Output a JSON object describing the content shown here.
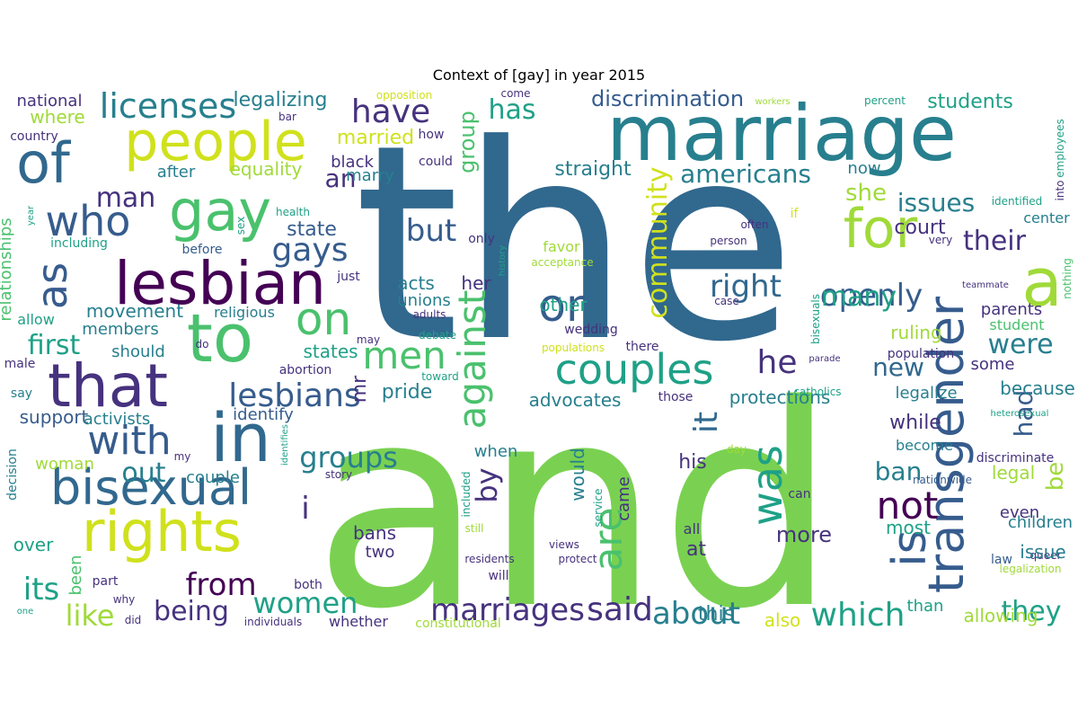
{
  "title": "Context of [gay] in year 2015",
  "palette": {
    "dark_purple": "#440154",
    "indigo": "#46327e",
    "blue": "#365c8d",
    "steel": "#31688e",
    "teal": "#277f8e",
    "green_teal": "#1fa187",
    "green": "#4ac16d",
    "lime": "#7ad151",
    "yellow_green": "#a0da39",
    "yellow": "#d0e11c"
  },
  "words": [
    {
      "text": "the",
      "color": "#31688e"
    },
    {
      "text": "and",
      "color": "#7ad151"
    },
    {
      "text": "marriage",
      "color": "#277f8e"
    },
    {
      "text": "of",
      "color": "#31688e"
    },
    {
      "text": "people",
      "color": "#d0e11c"
    },
    {
      "text": "gay",
      "color": "#4ac16d"
    },
    {
      "text": "lesbian",
      "color": "#440154"
    },
    {
      "text": "to",
      "color": "#4ac16d"
    },
    {
      "text": "in",
      "color": "#31688e"
    },
    {
      "text": "that",
      "color": "#46327e"
    },
    {
      "text": "rights",
      "color": "#d0e11c"
    },
    {
      "text": "bisexual",
      "color": "#31688e"
    },
    {
      "text": "transgender",
      "color": "#365c8d"
    },
    {
      "text": "a",
      "color": "#a0da39"
    },
    {
      "text": "for",
      "color": "#a0da39"
    },
    {
      "text": "couples",
      "color": "#1fa187"
    },
    {
      "text": "who",
      "color": "#365c8d"
    },
    {
      "text": "as",
      "color": "#365c8d"
    },
    {
      "text": "on",
      "color": "#4ac16d"
    },
    {
      "text": "or",
      "color": "#365c8d"
    },
    {
      "text": "is",
      "color": "#365c8d"
    },
    {
      "text": "openly",
      "color": "#365c8d"
    },
    {
      "text": "with",
      "color": "#365c8d"
    },
    {
      "text": "was",
      "color": "#1fa187"
    },
    {
      "text": "are",
      "color": "#4ac16d"
    },
    {
      "text": "against",
      "color": "#4ac16d"
    },
    {
      "text": "lesbians",
      "color": "#365c8d"
    },
    {
      "text": "men",
      "color": "#4ac16d"
    },
    {
      "text": "have",
      "color": "#46327e"
    },
    {
      "text": "licenses",
      "color": "#277f8e"
    },
    {
      "text": "gays",
      "color": "#365c8d"
    },
    {
      "text": "but",
      "color": "#365c8d"
    },
    {
      "text": "he",
      "color": "#46327e"
    },
    {
      "text": "not",
      "color": "#440154"
    },
    {
      "text": "their",
      "color": "#46327e"
    },
    {
      "text": "marriages",
      "color": "#46327e"
    },
    {
      "text": "said",
      "color": "#46327e"
    },
    {
      "text": "about",
      "color": "#277f8e"
    },
    {
      "text": "which",
      "color": "#1fa187"
    },
    {
      "text": "women",
      "color": "#1fa187"
    },
    {
      "text": "from",
      "color": "#440154"
    },
    {
      "text": "being",
      "color": "#46327e"
    },
    {
      "text": "like",
      "color": "#a0da39"
    },
    {
      "text": "its",
      "color": "#1fa187"
    },
    {
      "text": "groups",
      "color": "#277f8e"
    },
    {
      "text": "out",
      "color": "#277f8e"
    },
    {
      "text": "by",
      "color": "#46327e"
    },
    {
      "text": "community",
      "color": "#d0e11c"
    },
    {
      "text": "group",
      "color": "#4ac16d"
    },
    {
      "text": "has",
      "color": "#1fa187"
    },
    {
      "text": "discrimination",
      "color": "#365c8d"
    },
    {
      "text": "americans",
      "color": "#277f8e"
    },
    {
      "text": "she",
      "color": "#a0da39"
    },
    {
      "text": "issues",
      "color": "#277f8e"
    },
    {
      "text": "many",
      "color": "#1fa187"
    },
    {
      "text": "right",
      "color": "#31688e"
    },
    {
      "text": "were",
      "color": "#277f8e"
    },
    {
      "text": "new",
      "color": "#31688e"
    },
    {
      "text": "had",
      "color": "#365c8d"
    },
    {
      "text": "be",
      "color": "#a0da39"
    },
    {
      "text": "ban",
      "color": "#277f8e"
    },
    {
      "text": "they",
      "color": "#1fa187"
    },
    {
      "text": "first",
      "color": "#1fa187"
    },
    {
      "text": "man",
      "color": "#46327e"
    },
    {
      "text": "an",
      "color": "#46327e"
    },
    {
      "text": "students",
      "color": "#1fa187"
    },
    {
      "text": "court",
      "color": "#46327e"
    },
    {
      "text": "legalizing",
      "color": "#277f8e"
    },
    {
      "text": "national",
      "color": "#46327e"
    },
    {
      "text": "married",
      "color": "#d0e11c"
    },
    {
      "text": "where",
      "color": "#a0da39"
    },
    {
      "text": "country",
      "color": "#46327e"
    },
    {
      "text": "equality",
      "color": "#a0da39"
    },
    {
      "text": "after",
      "color": "#277f8e"
    },
    {
      "text": "black",
      "color": "#46327e"
    },
    {
      "text": "marry",
      "color": "#277f8e"
    },
    {
      "text": "state",
      "color": "#365c8d"
    },
    {
      "text": "movement",
      "color": "#277f8e"
    },
    {
      "text": "members",
      "color": "#277f8e"
    },
    {
      "text": "religious",
      "color": "#277f8e"
    },
    {
      "text": "should",
      "color": "#277f8e"
    },
    {
      "text": "states",
      "color": "#1fa187"
    },
    {
      "text": "pride",
      "color": "#277f8e"
    },
    {
      "text": "mr",
      "color": "#46327e"
    },
    {
      "text": "support",
      "color": "#365c8d"
    },
    {
      "text": "activists",
      "color": "#277f8e"
    },
    {
      "text": "identify",
      "color": "#365c8d"
    },
    {
      "text": "advocates",
      "color": "#277f8e"
    },
    {
      "text": "protections",
      "color": "#277f8e"
    },
    {
      "text": "straight",
      "color": "#277f8e"
    },
    {
      "text": "it",
      "color": "#31688e"
    },
    {
      "text": "her",
      "color": "#46327e"
    },
    {
      "text": "acts",
      "color": "#277f8e"
    },
    {
      "text": "other",
      "color": "#1fa187"
    },
    {
      "text": "unions",
      "color": "#277f8e"
    },
    {
      "text": "when",
      "color": "#277f8e"
    },
    {
      "text": "woman",
      "color": "#a0da39"
    },
    {
      "text": "couple",
      "color": "#277f8e"
    },
    {
      "text": "i",
      "color": "#46327e"
    },
    {
      "text": "would",
      "color": "#277f8e"
    },
    {
      "text": "came",
      "color": "#46327e"
    },
    {
      "text": "his",
      "color": "#46327e"
    },
    {
      "text": "bans",
      "color": "#46327e"
    },
    {
      "text": "two",
      "color": "#46327e"
    },
    {
      "text": "over",
      "color": "#1fa187"
    },
    {
      "text": "been",
      "color": "#4ac16d"
    },
    {
      "text": "at",
      "color": "#46327e"
    },
    {
      "text": "more",
      "color": "#46327e"
    },
    {
      "text": "this",
      "color": "#277f8e"
    },
    {
      "text": "also",
      "color": "#d0e11c"
    },
    {
      "text": "whether",
      "color": "#46327e"
    },
    {
      "text": "allowing",
      "color": "#a0da39"
    },
    {
      "text": "now",
      "color": "#277f8e"
    },
    {
      "text": "center",
      "color": "#277f8e"
    },
    {
      "text": "parents",
      "color": "#46327e"
    },
    {
      "text": "student",
      "color": "#4ac16d"
    },
    {
      "text": "ruling",
      "color": "#a0da39"
    },
    {
      "text": "population",
      "color": "#46327e"
    },
    {
      "text": "some",
      "color": "#46327e"
    },
    {
      "text": "because",
      "color": "#277f8e"
    },
    {
      "text": "legalize",
      "color": "#277f8e"
    },
    {
      "text": "while",
      "color": "#46327e"
    },
    {
      "text": "become",
      "color": "#277f8e"
    },
    {
      "text": "discriminate",
      "color": "#46327e"
    },
    {
      "text": "nationwide",
      "color": "#365c8d"
    },
    {
      "text": "legal",
      "color": "#a0da39"
    },
    {
      "text": "even",
      "color": "#46327e"
    },
    {
      "text": "children",
      "color": "#277f8e"
    },
    {
      "text": "most",
      "color": "#1fa187"
    },
    {
      "text": "law",
      "color": "#365c8d"
    },
    {
      "text": "queer",
      "color": "#46327e"
    },
    {
      "text": "issue",
      "color": "#277f8e"
    },
    {
      "text": "legalization",
      "color": "#a0da39"
    },
    {
      "text": "than",
      "color": "#1fa187"
    },
    {
      "text": "all",
      "color": "#46327e"
    },
    {
      "text": "relationships",
      "color": "#4ac16d"
    },
    {
      "text": "allow",
      "color": "#1fa187"
    },
    {
      "text": "male",
      "color": "#46327e"
    },
    {
      "text": "say",
      "color": "#277f8e"
    },
    {
      "text": "decision",
      "color": "#277f8e"
    },
    {
      "text": "including",
      "color": "#1fa187"
    },
    {
      "text": "year",
      "color": "#1fa187"
    },
    {
      "text": "health",
      "color": "#1fa187"
    },
    {
      "text": "sex",
      "color": "#1fa187"
    },
    {
      "text": "before",
      "color": "#365c8d"
    },
    {
      "text": "just",
      "color": "#46327e"
    },
    {
      "text": "adults",
      "color": "#46327e"
    },
    {
      "text": "debate",
      "color": "#1fa187"
    },
    {
      "text": "only",
      "color": "#46327e"
    },
    {
      "text": "history",
      "color": "#1fa187"
    },
    {
      "text": "favor",
      "color": "#a0da39"
    },
    {
      "text": "acceptance",
      "color": "#a0da39"
    },
    {
      "text": "wedding",
      "color": "#46327e"
    },
    {
      "text": "populations",
      "color": "#d0e11c"
    },
    {
      "text": "there",
      "color": "#46327e"
    },
    {
      "text": "those",
      "color": "#46327e"
    },
    {
      "text": "catholics",
      "color": "#1fa187"
    },
    {
      "text": "parade",
      "color": "#46327e"
    },
    {
      "text": "bisexuals",
      "color": "#1fa187"
    },
    {
      "text": "heterosexual",
      "color": "#1fa187"
    },
    {
      "text": "case",
      "color": "#46327e"
    },
    {
      "text": "person",
      "color": "#46327e"
    },
    {
      "text": "often",
      "color": "#46327e"
    },
    {
      "text": "very",
      "color": "#46327e"
    },
    {
      "text": "teammate",
      "color": "#46327e"
    },
    {
      "text": "nothing",
      "color": "#4ac16d"
    },
    {
      "text": "identified",
      "color": "#1fa187"
    },
    {
      "text": "percent",
      "color": "#1fa187"
    },
    {
      "text": "workers",
      "color": "#a0da39"
    },
    {
      "text": "employees",
      "color": "#1fa187"
    },
    {
      "text": "into",
      "color": "#46327e"
    },
    {
      "text": "if",
      "color": "#d0e11c"
    },
    {
      "text": "opposition",
      "color": "#d0e11c"
    },
    {
      "text": "come",
      "color": "#46327e"
    },
    {
      "text": "bar",
      "color": "#46327e"
    },
    {
      "text": "how",
      "color": "#46327e"
    },
    {
      "text": "could",
      "color": "#46327e"
    },
    {
      "text": "may",
      "color": "#46327e"
    },
    {
      "text": "do",
      "color": "#46327e"
    },
    {
      "text": "abortion",
      "color": "#46327e"
    },
    {
      "text": "toward",
      "color": "#1fa187"
    },
    {
      "text": "identifies",
      "color": "#1fa187"
    },
    {
      "text": "my",
      "color": "#46327e"
    },
    {
      "text": "story",
      "color": "#46327e"
    },
    {
      "text": "included",
      "color": "#1fa187"
    },
    {
      "text": "still",
      "color": "#a0da39"
    },
    {
      "text": "service",
      "color": "#1fa187"
    },
    {
      "text": "views",
      "color": "#46327e"
    },
    {
      "text": "day",
      "color": "#a0da39"
    },
    {
      "text": "can",
      "color": "#46327e"
    },
    {
      "text": "residents",
      "color": "#46327e"
    },
    {
      "text": "will",
      "color": "#46327e"
    },
    {
      "text": "protect",
      "color": "#46327e"
    },
    {
      "text": "constitutional",
      "color": "#a0da39"
    },
    {
      "text": "part",
      "color": "#46327e"
    },
    {
      "text": "why",
      "color": "#46327e"
    },
    {
      "text": "did",
      "color": "#46327e"
    },
    {
      "text": "individuals",
      "color": "#46327e"
    },
    {
      "text": "both",
      "color": "#46327e"
    },
    {
      "text": "one",
      "color": "#1fa187"
    }
  ]
}
